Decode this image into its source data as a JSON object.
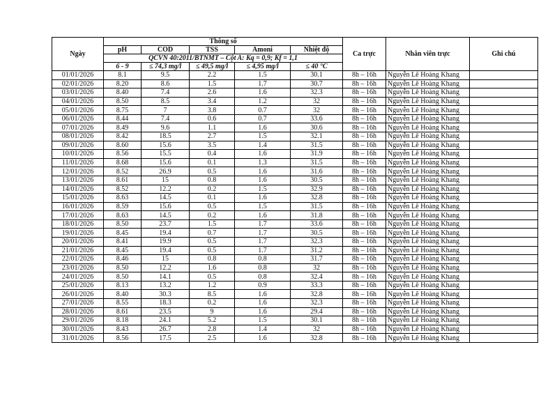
{
  "headers": {
    "date": "Ngày",
    "params": "Thông số",
    "ph": "pH",
    "cod": "COD",
    "tss": "TSS",
    "amoni": "Amoni",
    "temp": "Nhiệt độ",
    "standard": "QCVN 40:2011/BTNMT – Cột A: Kq = 0,9; Kf = 1,1",
    "shift": "Ca trực",
    "staff": "Nhân viên trực",
    "notes": "Ghi chú"
  },
  "limits": {
    "ph": "6 - 9",
    "cod": "≤ 74,3 mg/l",
    "tss": "≤ 49,5 mg/l",
    "amoni": "≤ 4,95 mg/l",
    "temp": "≤ 40 °C"
  },
  "rows": [
    [
      "01/01/2026",
      "8.1",
      "9.5",
      "2.2",
      "1.5",
      "30.1",
      "8h – 16h",
      "Nguyễn Lê Hoàng Khang",
      ""
    ],
    [
      "02/01/2026",
      "8.20",
      "8.6",
      "1.5",
      "1.7",
      "30.7",
      "8h – 16h",
      "Nguyễn Lê Hoàng Khang",
      ""
    ],
    [
      "03/01/2026",
      "8.40",
      "7.4",
      "2.6",
      "1.6",
      "32.3",
      "8h – 16h",
      "Nguyễn Lê Hoàng Khang",
      ""
    ],
    [
      "04/01/2026",
      "8.50",
      "8.5",
      "3.4",
      "1.2",
      "32",
      "8h – 16h",
      "Nguyễn Lê Hoàng Khang",
      ""
    ],
    [
      "05/01/2026",
      "8.75",
      "7",
      "3.8",
      "0.7",
      "32",
      "8h – 16h",
      "Nguyễn Lê Hoàng Khang",
      ""
    ],
    [
      "06/01/2026",
      "8.44",
      "7.4",
      "0.6",
      "0.7",
      "33.6",
      "8h – 16h",
      "Nguyễn Lê Hoàng Khang",
      ""
    ],
    [
      "07/01/2026",
      "8.49",
      "9.6",
      "1.1",
      "1.6",
      "30.6",
      "8h – 16h",
      "Nguyễn Lê Hoàng Khang",
      ""
    ],
    [
      "08/01/2026",
      "8.42",
      "18.5",
      "2.7",
      "1.5",
      "32.1",
      "8h – 16h",
      "Nguyễn Lê Hoàng Khang",
      ""
    ],
    [
      "09/01/2026",
      "8.60",
      "15.6",
      "3.5",
      "1.4",
      "31.5",
      "8h – 16h",
      "Nguyễn Lê Hoàng Khang",
      ""
    ],
    [
      "10/01/2026",
      "8.56",
      "15.5",
      "0.4",
      "1.6",
      "31.9",
      "8h – 16h",
      "Nguyễn Lê Hoàng Khang",
      ""
    ],
    [
      "11/01/2026",
      "8.68",
      "15.6",
      "0.1",
      "1.3",
      "31.5",
      "8h – 16h",
      "Nguyễn Lê Hoàng Khang",
      ""
    ],
    [
      "12/01/2026",
      "8.52",
      "26.9",
      "0.5",
      "1.6",
      "31.6",
      "8h – 16h",
      "Nguyễn Lê Hoàng Khang",
      ""
    ],
    [
      "13/01/2026",
      "8.61",
      "15",
      "0.8",
      "1.6",
      "30.5",
      "8h – 16h",
      "Nguyễn Lê Hoàng Khang",
      ""
    ],
    [
      "14/01/2026",
      "8.52",
      "12.2",
      "0.2",
      "1.5",
      "32.9",
      "8h – 16h",
      "Nguyễn Lê Hoàng Khang",
      ""
    ],
    [
      "15/01/2026",
      "8.63",
      "14.5",
      "0.1",
      "1.6",
      "32.8",
      "8h – 16h",
      "Nguyễn Lê Hoàng Khang",
      ""
    ],
    [
      "16/01/2026",
      "8.59",
      "15.6",
      "0.5",
      "1.5",
      "31.5",
      "8h – 16h",
      "Nguyễn Lê Hoàng Khang",
      ""
    ],
    [
      "17/01/2026",
      "8.63",
      "14.5",
      "0.2",
      "1.6",
      "31.8",
      "8h – 16h",
      "Nguyễn Lê Hoàng Khang",
      ""
    ],
    [
      "18/01/2026",
      "8.50",
      "23.7",
      "1.5",
      "1.7",
      "33.6",
      "8h – 16h",
      "Nguyễn Lê Hoàng Khang",
      ""
    ],
    [
      "19/01/2026",
      "8.45",
      "19.4",
      "0.7",
      "1.7",
      "30.5",
      "8h – 16h",
      "Nguyễn Lê Hoàng Khang",
      ""
    ],
    [
      "20/01/2026",
      "8.41",
      "19.9",
      "0.5",
      "1.7",
      "32.3",
      "8h – 16h",
      "Nguyễn Lê Hoàng Khang",
      ""
    ],
    [
      "21/01/2026",
      "8.45",
      "19.4",
      "0.5",
      "1.7",
      "31.2",
      "8h – 16h",
      "Nguyễn Lê Hoàng Khang",
      ""
    ],
    [
      "22/01/2026",
      "8.46",
      "15",
      "0.8",
      "0.8",
      "31.7",
      "8h – 16h",
      "Nguyễn Lê Hoàng Khang",
      ""
    ],
    [
      "23/01/2026",
      "8.50",
      "12.2",
      "1.6",
      "0.8",
      "32",
      "8h – 16h",
      "Nguyễn Lê Hoàng Khang",
      ""
    ],
    [
      "24/01/2026",
      "8.50",
      "14.1",
      "0.5",
      "0.8",
      "32.4",
      "8h – 16h",
      "Nguyễn Lê Hoàng Khang",
      ""
    ],
    [
      "25/01/2026",
      "8.13",
      "13.2",
      "1.2",
      "0.9",
      "33.3",
      "8h – 16h",
      "Nguyễn Lê Hoàng Khang",
      ""
    ],
    [
      "26/01/2026",
      "8.40",
      "30.3",
      "8.5",
      "1.6",
      "32.8",
      "8h – 16h",
      "Nguyễn Lê Hoàng Khang",
      ""
    ],
    [
      "27/01/2026",
      "8.55",
      "18.3",
      "0.2",
      "1.6",
      "32.3",
      "8h – 16h",
      "Nguyễn Lê Hoàng Khang",
      ""
    ],
    [
      "28/01/2026",
      "8.61",
      "23.5",
      "9",
      "1.6",
      "29.4",
      "8h – 16h",
      "Nguyễn Lê Hoàng Khang",
      ""
    ],
    [
      "29/01/2026",
      "8.18",
      "24.1",
      "5.2",
      "1.5",
      "30.1",
      "8h – 16h",
      "Nguyễn Lê Hoàng Khang",
      ""
    ],
    [
      "30/01/2026",
      "8.43",
      "26.7",
      "2.8",
      "1.4",
      "32",
      "8h – 16h",
      "Nguyễn Lê Hoàng Khang",
      ""
    ],
    [
      "31/01/2026",
      "8.56",
      "17.5",
      "2.5",
      "1.6",
      "32.8",
      "8h – 16h",
      "Nguyễn Lê Hoàng Khang",
      ""
    ]
  ]
}
